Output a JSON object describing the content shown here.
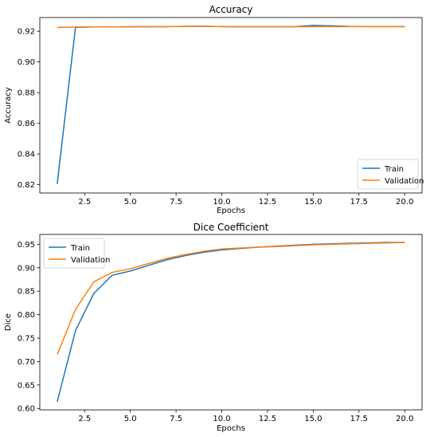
{
  "chart_data": [
    {
      "type": "line",
      "title": "Accuracy",
      "xlabel": "Epochs",
      "ylabel": "Accuracy",
      "xlim": [
        0.05,
        20.95
      ],
      "ylim": [
        0.8146,
        0.9289
      ],
      "xticks": [
        2.5,
        5.0,
        7.5,
        10.0,
        12.5,
        15.0,
        17.5,
        20.0
      ],
      "xtick_labels": [
        "2.5",
        "5.0",
        "7.5",
        "10.0",
        "12.5",
        "15.0",
        "17.5",
        "20.0"
      ],
      "yticks": [
        0.82,
        0.84,
        0.86,
        0.88,
        0.9,
        0.92
      ],
      "ytick_labels": [
        "0.82",
        "0.84",
        "0.86",
        "0.88",
        "0.90",
        "0.92"
      ],
      "legend_position": "lower-right",
      "grid": false,
      "series": [
        {
          "name": "Train",
          "color": "#1f77b4",
          "x": [
            1,
            2,
            3,
            4,
            5,
            6,
            7,
            8,
            9,
            10,
            11,
            12,
            13,
            14,
            15,
            16,
            17,
            18,
            19,
            20
          ],
          "values": [
            0.8205,
            0.9225,
            0.9228,
            0.9228,
            0.9229,
            0.9229,
            0.923,
            0.9231,
            0.9232,
            0.923,
            0.9229,
            0.9229,
            0.9229,
            0.9229,
            0.9238,
            0.9235,
            0.9231,
            0.923,
            0.923,
            0.923
          ]
        },
        {
          "name": "Validation",
          "color": "#ff7f0e",
          "x": [
            1,
            2,
            3,
            4,
            5,
            6,
            7,
            8,
            9,
            10,
            11,
            12,
            13,
            14,
            15,
            16,
            17,
            18,
            19,
            20
          ],
          "values": [
            0.9225,
            0.9227,
            0.9228,
            0.9228,
            0.9228,
            0.9229,
            0.923,
            0.9232,
            0.9233,
            0.923,
            0.9229,
            0.9229,
            0.9229,
            0.9229,
            0.923,
            0.923,
            0.923,
            0.923,
            0.923,
            0.923
          ]
        }
      ]
    },
    {
      "type": "line",
      "title": "Dice Coefficient",
      "xlabel": "Epochs",
      "ylabel": "Dice",
      "xlim": [
        0.05,
        20.95
      ],
      "ylim": [
        0.597,
        0.971
      ],
      "xticks": [
        2.5,
        5.0,
        7.5,
        10.0,
        12.5,
        15.0,
        17.5,
        20.0
      ],
      "xtick_labels": [
        "2.5",
        "5.0",
        "7.5",
        "10.0",
        "12.5",
        "15.0",
        "17.5",
        "20.0"
      ],
      "yticks": [
        0.6,
        0.65,
        0.7,
        0.75,
        0.8,
        0.85,
        0.9,
        0.95
      ],
      "ytick_labels": [
        "0.60",
        "0.65",
        "0.70",
        "0.75",
        "0.80",
        "0.85",
        "0.90",
        "0.95"
      ],
      "legend_position": "upper-left",
      "grid": false,
      "series": [
        {
          "name": "Train",
          "color": "#1f77b4",
          "x": [
            1,
            2,
            3,
            4,
            5,
            6,
            7,
            8,
            9,
            10,
            11,
            12,
            13,
            14,
            15,
            16,
            17,
            18,
            19,
            20
          ],
          "values": [
            0.614,
            0.766,
            0.845,
            0.884,
            0.893,
            0.905,
            0.917,
            0.926,
            0.933,
            0.938,
            0.941,
            0.944,
            0.946,
            0.948,
            0.95,
            0.951,
            0.952,
            0.953,
            0.954,
            0.954
          ]
        },
        {
          "name": "Validation",
          "color": "#ff7f0e",
          "x": [
            1,
            2,
            3,
            4,
            5,
            6,
            7,
            8,
            9,
            10,
            11,
            12,
            13,
            14,
            15,
            16,
            17,
            18,
            19,
            20
          ],
          "values": [
            0.715,
            0.811,
            0.87,
            0.89,
            0.898,
            0.909,
            0.92,
            0.928,
            0.935,
            0.94,
            0.942,
            0.944,
            0.945,
            0.947,
            0.949,
            0.95,
            0.951,
            0.952,
            0.953,
            0.954
          ]
        }
      ]
    }
  ]
}
